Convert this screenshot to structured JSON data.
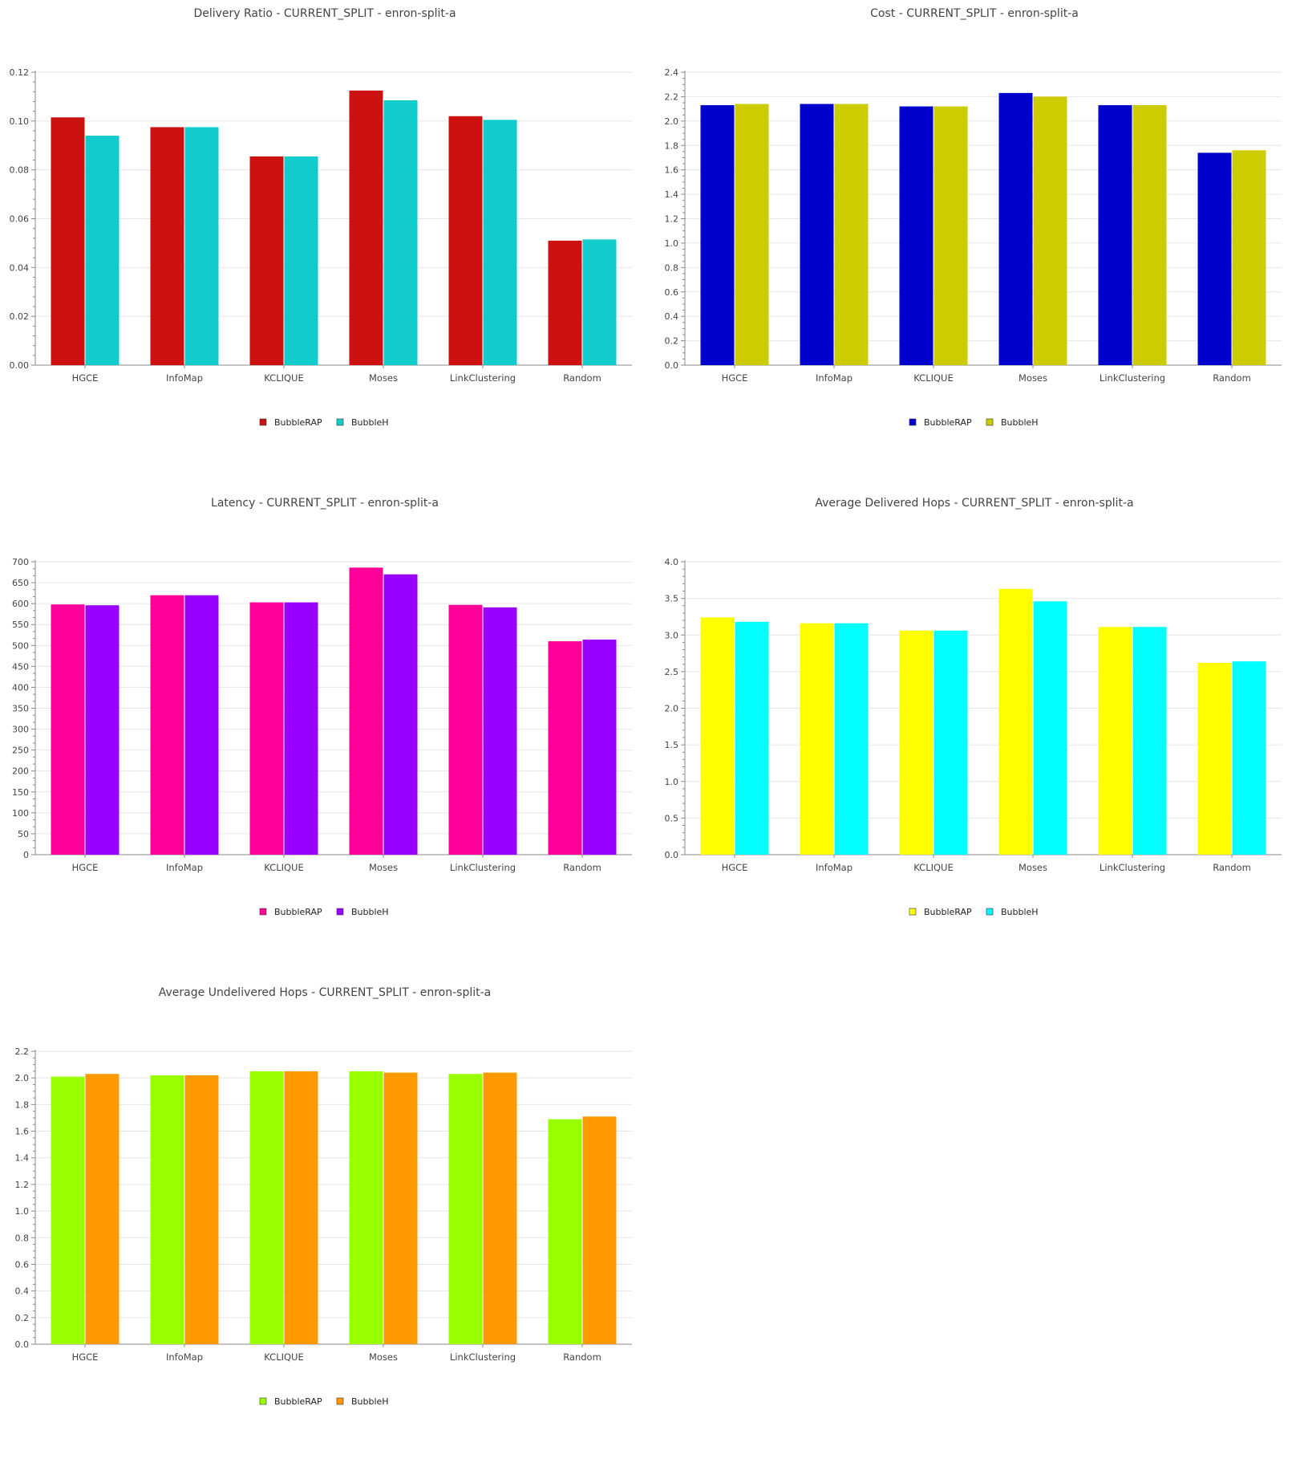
{
  "chart_data": [
    {
      "type": "bar",
      "title": "Delivery Ratio - CURRENT_SPLIT - enron-split-a",
      "xlabel": "",
      "ylabel": "",
      "categories": [
        "HGCE",
        "InfoMap",
        "KCLIQUE",
        "Moses",
        "LinkClustering",
        "Random"
      ],
      "ylim": [
        0,
        0.12
      ],
      "yticks": [
        "0.00",
        "0.02",
        "0.04",
        "0.06",
        "0.08",
        "0.10",
        "0.12"
      ],
      "grid": true,
      "legend_position": "bottom",
      "series": [
        {
          "name": "BubbleRAP",
          "color": "#cc1111",
          "values": [
            0.1015,
            0.0975,
            0.0855,
            0.1125,
            0.102,
            0.051
          ]
        },
        {
          "name": "BubbleH",
          "color": "#11cccc",
          "values": [
            0.094,
            0.0975,
            0.0855,
            0.1085,
            0.1005,
            0.0515
          ]
        }
      ]
    },
    {
      "type": "bar",
      "title": "Cost - CURRENT_SPLIT - enron-split-a",
      "xlabel": "",
      "ylabel": "",
      "categories": [
        "HGCE",
        "InfoMap",
        "KCLIQUE",
        "Moses",
        "LinkClustering",
        "Random"
      ],
      "ylim": [
        0,
        2.4
      ],
      "yticks": [
        "0.0",
        "0.2",
        "0.4",
        "0.6",
        "0.8",
        "1.0",
        "1.2",
        "1.4",
        "1.6",
        "1.8",
        "2.0",
        "2.2",
        "2.4"
      ],
      "grid": true,
      "legend_position": "bottom",
      "series": [
        {
          "name": "BubbleRAP",
          "color": "#0000cc",
          "values": [
            2.13,
            2.14,
            2.12,
            2.23,
            2.13,
            1.74
          ]
        },
        {
          "name": "BubbleH",
          "color": "#cccc00",
          "values": [
            2.14,
            2.14,
            2.12,
            2.2,
            2.13,
            1.76
          ]
        }
      ]
    },
    {
      "type": "bar",
      "title": "Latency - CURRENT_SPLIT - enron-split-a",
      "xlabel": "",
      "ylabel": "",
      "categories": [
        "HGCE",
        "InfoMap",
        "KCLIQUE",
        "Moses",
        "LinkClustering",
        "Random"
      ],
      "ylim": [
        0,
        700
      ],
      "yticks": [
        "0",
        "50",
        "100",
        "150",
        "200",
        "250",
        "300",
        "350",
        "400",
        "450",
        "500",
        "550",
        "600",
        "650",
        "700"
      ],
      "grid": true,
      "legend_position": "bottom",
      "series": [
        {
          "name": "BubbleRAP",
          "color": "#ff0099",
          "values": [
            598,
            620,
            603,
            686,
            597,
            510
          ]
        },
        {
          "name": "BubbleH",
          "color": "#9900ff",
          "values": [
            596,
            620,
            603,
            670,
            591,
            514
          ]
        }
      ]
    },
    {
      "type": "bar",
      "title": "Average Delivered Hops - CURRENT_SPLIT - enron-split-a",
      "xlabel": "",
      "ylabel": "",
      "categories": [
        "HGCE",
        "InfoMap",
        "KCLIQUE",
        "Moses",
        "LinkClustering",
        "Random"
      ],
      "ylim": [
        0,
        4.0
      ],
      "yticks": [
        "0.0",
        "0.5",
        "1.0",
        "1.5",
        "2.0",
        "2.5",
        "3.0",
        "3.5",
        "4.0"
      ],
      "grid": true,
      "legend_position": "bottom",
      "series": [
        {
          "name": "BubbleRAP",
          "color": "#ffff00",
          "values": [
            3.24,
            3.16,
            3.06,
            3.63,
            3.11,
            2.62
          ]
        },
        {
          "name": "BubbleH",
          "color": "#00ffff",
          "values": [
            3.18,
            3.16,
            3.06,
            3.46,
            3.11,
            2.64
          ]
        }
      ]
    },
    {
      "type": "bar",
      "title": "Average Undelivered Hops - CURRENT_SPLIT - enron-split-a",
      "xlabel": "",
      "ylabel": "",
      "categories": [
        "HGCE",
        "InfoMap",
        "KCLIQUE",
        "Moses",
        "LinkClustering",
        "Random"
      ],
      "ylim": [
        0,
        2.2
      ],
      "yticks": [
        "0.0",
        "0.2",
        "0.4",
        "0.6",
        "0.8",
        "1.0",
        "1.2",
        "1.4",
        "1.6",
        "1.8",
        "2.0",
        "2.2"
      ],
      "grid": true,
      "legend_position": "bottom",
      "series": [
        {
          "name": "BubbleRAP",
          "color": "#99ff00",
          "values": [
            2.01,
            2.02,
            2.05,
            2.05,
            2.03,
            1.69
          ]
        },
        {
          "name": "BubbleH",
          "color": "#ff9900",
          "values": [
            2.03,
            2.02,
            2.05,
            2.04,
            2.04,
            1.71
          ]
        }
      ]
    }
  ]
}
